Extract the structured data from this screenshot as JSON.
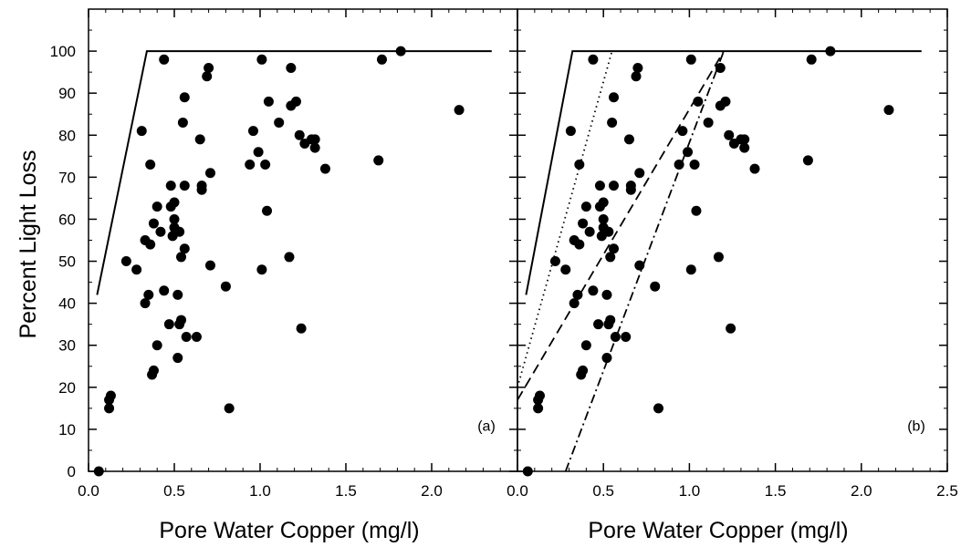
{
  "chart_data": {
    "type": "scatter",
    "ylabel": "Percent Light Loss",
    "xlabel": "Pore Water Copper (mg/l)",
    "ylim": [
      0,
      110
    ],
    "yticks": [
      "0",
      "10",
      "20",
      "30",
      "40",
      "50",
      "60",
      "70",
      "80",
      "90",
      "100"
    ],
    "grid": false,
    "legend": "none",
    "points": [
      [
        0.06,
        0
      ],
      [
        0.12,
        15
      ],
      [
        0.12,
        17
      ],
      [
        0.13,
        18
      ],
      [
        0.22,
        50
      ],
      [
        0.28,
        48
      ],
      [
        0.31,
        81
      ],
      [
        0.33,
        40
      ],
      [
        0.33,
        55
      ],
      [
        0.35,
        42
      ],
      [
        0.36,
        54
      ],
      [
        0.36,
        73
      ],
      [
        0.37,
        23
      ],
      [
        0.38,
        24
      ],
      [
        0.38,
        59
      ],
      [
        0.4,
        30
      ],
      [
        0.4,
        63
      ],
      [
        0.42,
        57
      ],
      [
        0.44,
        98
      ],
      [
        0.44,
        43
      ],
      [
        0.47,
        35
      ],
      [
        0.48,
        63
      ],
      [
        0.48,
        68
      ],
      [
        0.49,
        56
      ],
      [
        0.5,
        60
      ],
      [
        0.5,
        64
      ],
      [
        0.5,
        58
      ],
      [
        0.52,
        42
      ],
      [
        0.52,
        27
      ],
      [
        0.53,
        35
      ],
      [
        0.53,
        57
      ],
      [
        0.54,
        36
      ],
      [
        0.54,
        51
      ],
      [
        0.55,
        83
      ],
      [
        0.56,
        53
      ],
      [
        0.56,
        68
      ],
      [
        0.56,
        89
      ],
      [
        0.57,
        32
      ],
      [
        0.63,
        32
      ],
      [
        0.65,
        79
      ],
      [
        0.66,
        67
      ],
      [
        0.66,
        68
      ],
      [
        0.69,
        94
      ],
      [
        0.7,
        96
      ],
      [
        0.71,
        71
      ],
      [
        0.71,
        49
      ],
      [
        0.8,
        44
      ],
      [
        0.82,
        15
      ],
      [
        0.94,
        73
      ],
      [
        0.96,
        81
      ],
      [
        0.99,
        76
      ],
      [
        1.01,
        48
      ],
      [
        1.01,
        98
      ],
      [
        1.03,
        73
      ],
      [
        1.04,
        62
      ],
      [
        1.05,
        88
      ],
      [
        1.11,
        83
      ],
      [
        1.17,
        51
      ],
      [
        1.18,
        87
      ],
      [
        1.18,
        96
      ],
      [
        1.21,
        88
      ],
      [
        1.23,
        80
      ],
      [
        1.24,
        34
      ],
      [
        1.26,
        78
      ],
      [
        1.3,
        79
      ],
      [
        1.32,
        79
      ],
      [
        1.32,
        77
      ],
      [
        1.38,
        72
      ],
      [
        1.69,
        74
      ],
      [
        1.71,
        98
      ],
      [
        1.82,
        100
      ],
      [
        2.16,
        86
      ]
    ],
    "panels": [
      {
        "label": "(a)",
        "xlim": [
          0,
          2.5
        ],
        "xticks": [
          "0.0",
          "0.5",
          "1.0",
          "1.5",
          "2.0"
        ],
        "lines": [
          {
            "style": "solid",
            "points": [
              [
                0.05,
                42
              ],
              [
                0.34,
                100
              ],
              [
                2.35,
                100
              ]
            ]
          }
        ]
      },
      {
        "label": "(b)",
        "xlim": [
          0,
          2.5
        ],
        "xticks": [
          "0.0",
          "0.5",
          "1.0",
          "1.5",
          "2.0",
          "2.5"
        ],
        "lines": [
          {
            "style": "solid",
            "points": [
              [
                0.05,
                42
              ],
              [
                0.32,
                100
              ],
              [
                2.35,
                100
              ]
            ]
          },
          {
            "style": "dotted",
            "points": [
              [
                0.0,
                20
              ],
              [
                0.55,
                100
              ]
            ]
          },
          {
            "style": "dashed",
            "points": [
              [
                0.0,
                17
              ],
              [
                1.2,
                100
              ]
            ]
          },
          {
            "style": "dashdot",
            "points": [
              [
                0.28,
                0
              ],
              [
                1.2,
                100
              ]
            ]
          }
        ]
      }
    ]
  }
}
